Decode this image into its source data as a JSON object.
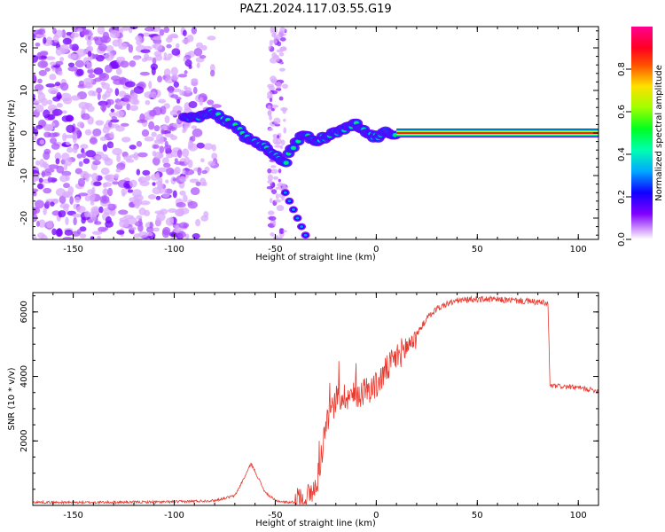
{
  "title": "PAZ1.2024.117.03.55.G19",
  "chart_data": [
    {
      "type": "heatmap",
      "xlabel": "Height of straight line (km)",
      "ylabel": "Frequency (Hz)",
      "xlim": [
        -170,
        110
      ],
      "ylim": [
        -25,
        25
      ],
      "xticks": [
        "-150",
        "-100",
        "-50",
        "0",
        "50",
        "100"
      ],
      "yticks": [
        "20",
        "10",
        "0",
        "-10",
        "-20"
      ],
      "colorbar": {
        "label": "Normalized spectral amplitude",
        "range": [
          0,
          1
        ],
        "ticks": [
          "0.0",
          "0.2",
          "0.4",
          "0.6",
          "0.8"
        ],
        "colormap": "gist_rainbow (purple to red)"
      },
      "ridge": {
        "x": [
          -95,
          -88,
          -83,
          -78,
          -75,
          -70,
          -65,
          -60,
          -56,
          -52,
          -48,
          -45,
          -42,
          -40,
          -37,
          -34,
          -30,
          -25,
          -20,
          -15,
          -10,
          -5,
          0,
          5,
          10,
          20,
          40,
          60,
          80,
          110
        ],
        "y": [
          4,
          4,
          5,
          4,
          3,
          2,
          -1,
          -2,
          -3,
          -5,
          -6,
          -7,
          -4,
          -2,
          -1,
          -1,
          -2,
          -1,
          0,
          1,
          2,
          0,
          -1,
          0,
          0,
          0,
          0,
          0,
          0,
          0
        ]
      },
      "branch": {
        "x": [
          -45,
          -43,
          -41,
          -39,
          -37,
          -35
        ],
        "y": [
          -14,
          -16,
          -18,
          -20,
          -22,
          -24
        ]
      },
      "noise_region_x": [
        -170,
        -75
      ]
    },
    {
      "type": "line",
      "xlabel": "Height of straight line (km)",
      "ylabel": "SNR (10 * v/v)",
      "xlim": [
        -170,
        110
      ],
      "ylim": [
        0,
        6600
      ],
      "xticks": [
        "-150",
        "-100",
        "-50",
        "0",
        "50",
        "100"
      ],
      "yticks": [
        "2000",
        "4000",
        "6000"
      ],
      "series": [
        {
          "color": "#e8392f",
          "x": [
            -170,
            -150,
            -120,
            -100,
            -80,
            -70,
            -65,
            -62,
            -58,
            -55,
            -50,
            -45,
            -40,
            -35,
            -30,
            -28,
            -25,
            -22,
            -20,
            -15,
            -10,
            -5,
            0,
            5,
            10,
            15,
            20,
            25,
            30,
            35,
            40,
            50,
            60,
            70,
            80,
            85,
            86,
            90,
            100,
            110
          ],
          "y": [
            100,
            90,
            100,
            110,
            150,
            300,
            900,
            1300,
            800,
            400,
            150,
            100,
            100,
            200,
            500,
            1200,
            2500,
            3000,
            3300,
            3400,
            3400,
            3600,
            3700,
            4200,
            4600,
            4900,
            5300,
            5800,
            6100,
            6250,
            6350,
            6400,
            6380,
            6350,
            6300,
            6250,
            3700,
            3700,
            3650,
            3550
          ]
        }
      ]
    }
  ],
  "colors": {
    "line": "#e8392f",
    "axes": "#000000",
    "background": "#ffffff"
  }
}
